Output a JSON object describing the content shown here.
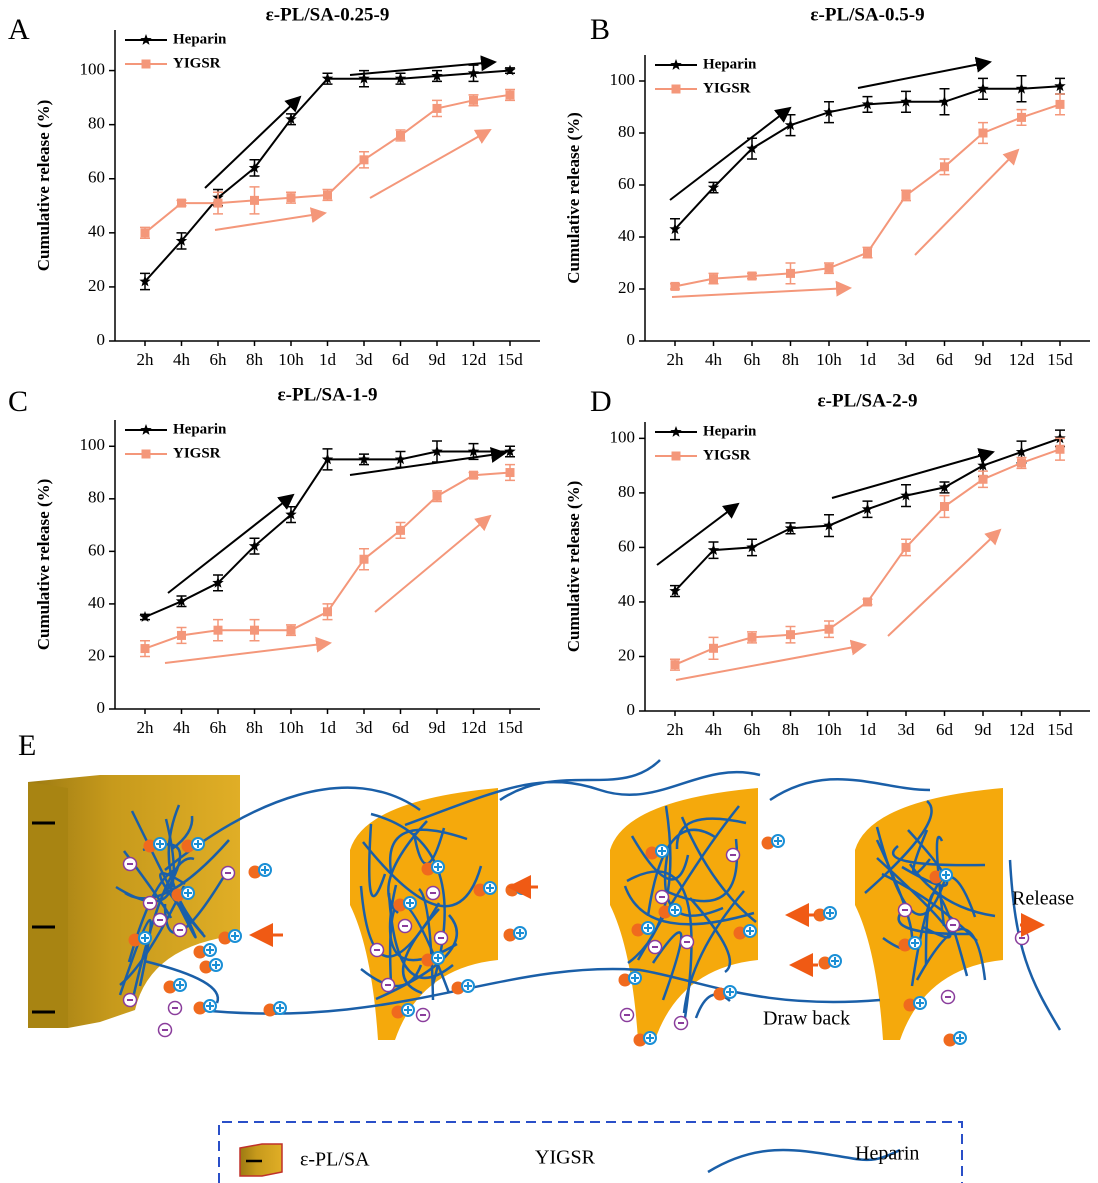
{
  "chart_data": [
    {
      "type": "line",
      "label": "A",
      "title": "ε-PL/SA-0.25-9",
      "y_label": "Cumulative release (%)",
      "categories": [
        "2h",
        "4h",
        "6h",
        "8h",
        "10h",
        "1d",
        "3d",
        "6d",
        "9d",
        "12d",
        "15d"
      ],
      "ylim": [
        0,
        115
      ],
      "yticks": [
        0,
        20,
        40,
        60,
        80,
        100
      ],
      "series": [
        {
          "name": "Heparin",
          "color": "#000000",
          "marker": "star",
          "values": [
            22,
            37,
            53,
            64,
            82,
            97,
            97,
            97,
            98,
            99,
            100
          ],
          "errors": [
            3,
            3,
            3,
            3,
            2,
            2,
            3,
            2,
            2,
            3,
            1
          ]
        },
        {
          "name": "YIGSR",
          "color": "#f4977a",
          "marker": "square",
          "values": [
            40,
            51,
            51,
            52,
            53,
            54,
            67,
            76,
            86,
            89,
            91
          ],
          "errors": [
            2,
            1,
            4,
            5,
            2,
            2,
            3,
            2,
            3,
            2,
            2
          ]
        }
      ]
    },
    {
      "type": "line",
      "label": "B",
      "title": "ε-PL/SA-0.5-9",
      "y_label": "Cumulative release (%)",
      "categories": [
        "2h",
        "4h",
        "6h",
        "8h",
        "10h",
        "1d",
        "3d",
        "6d",
        "9d",
        "12d",
        "15d"
      ],
      "ylim": [
        0,
        110
      ],
      "yticks": [
        0,
        20,
        40,
        60,
        80,
        100
      ],
      "series": [
        {
          "name": "Heparin",
          "color": "#000000",
          "marker": "star",
          "values": [
            43,
            59,
            74,
            83,
            88,
            91,
            92,
            92,
            97,
            97,
            98
          ],
          "errors": [
            4,
            2,
            4,
            4,
            4,
            3,
            4,
            5,
            4,
            5,
            3
          ]
        },
        {
          "name": "YIGSR",
          "color": "#f4977a",
          "marker": "square",
          "values": [
            21,
            24,
            25,
            26,
            28,
            34,
            56,
            67,
            80,
            86,
            91
          ],
          "errors": [
            1,
            2,
            1,
            4,
            2,
            2,
            2,
            3,
            4,
            3,
            4
          ]
        }
      ]
    },
    {
      "type": "line",
      "label": "C",
      "title": "ε-PL/SA-1-9",
      "y_label": "Cumulative release (%)",
      "categories": [
        "2h",
        "4h",
        "6h",
        "8h",
        "10h",
        "1d",
        "3d",
        "6d",
        "9d",
        "12d",
        "15d"
      ],
      "ylim": [
        0,
        110
      ],
      "yticks": [
        0,
        20,
        40,
        60,
        80,
        100
      ],
      "series": [
        {
          "name": "Heparin",
          "color": "#000000",
          "marker": "star",
          "values": [
            35,
            41,
            48,
            62,
            74,
            95,
            95,
            95,
            98,
            98,
            98
          ],
          "errors": [
            1,
            2,
            3,
            3,
            3,
            4,
            2,
            3,
            4,
            3,
            2
          ]
        },
        {
          "name": "YIGSR",
          "color": "#f4977a",
          "marker": "square",
          "values": [
            23,
            28,
            30,
            30,
            30,
            37,
            57,
            68,
            81,
            89,
            90
          ],
          "errors": [
            3,
            3,
            4,
            4,
            2,
            3,
            4,
            3,
            2,
            1,
            3
          ]
        }
      ]
    },
    {
      "type": "line",
      "label": "D",
      "title": "ε-PL/SA-2-9",
      "y_label": "Cumulative release (%)",
      "categories": [
        "2h",
        "4h",
        "6h",
        "8h",
        "10h",
        "1d",
        "3d",
        "6d",
        "9d",
        "12d",
        "15d"
      ],
      "ylim": [
        0,
        106
      ],
      "yticks": [
        0,
        20,
        40,
        60,
        80,
        100
      ],
      "series": [
        {
          "name": "Heparin",
          "color": "#000000",
          "marker": "star",
          "values": [
            44,
            59,
            60,
            67,
            68,
            74,
            79,
            82,
            90,
            95,
            100
          ],
          "errors": [
            2,
            3,
            3,
            2,
            4,
            3,
            4,
            2,
            4,
            4,
            3
          ]
        },
        {
          "name": "YIGSR",
          "color": "#f4977a",
          "marker": "square",
          "values": [
            17,
            23,
            27,
            28,
            30,
            40,
            60,
            75,
            85,
            91,
            96
          ],
          "errors": [
            2,
            4,
            2,
            3,
            3,
            1,
            3,
            4,
            3,
            2,
            4
          ]
        }
      ]
    }
  ],
  "diagram": {
    "label": "E",
    "annotations": [
      "Release",
      "Draw back"
    ],
    "legend": [
      "ε-PL/SA",
      "YIGSR",
      "Heparin"
    ]
  }
}
